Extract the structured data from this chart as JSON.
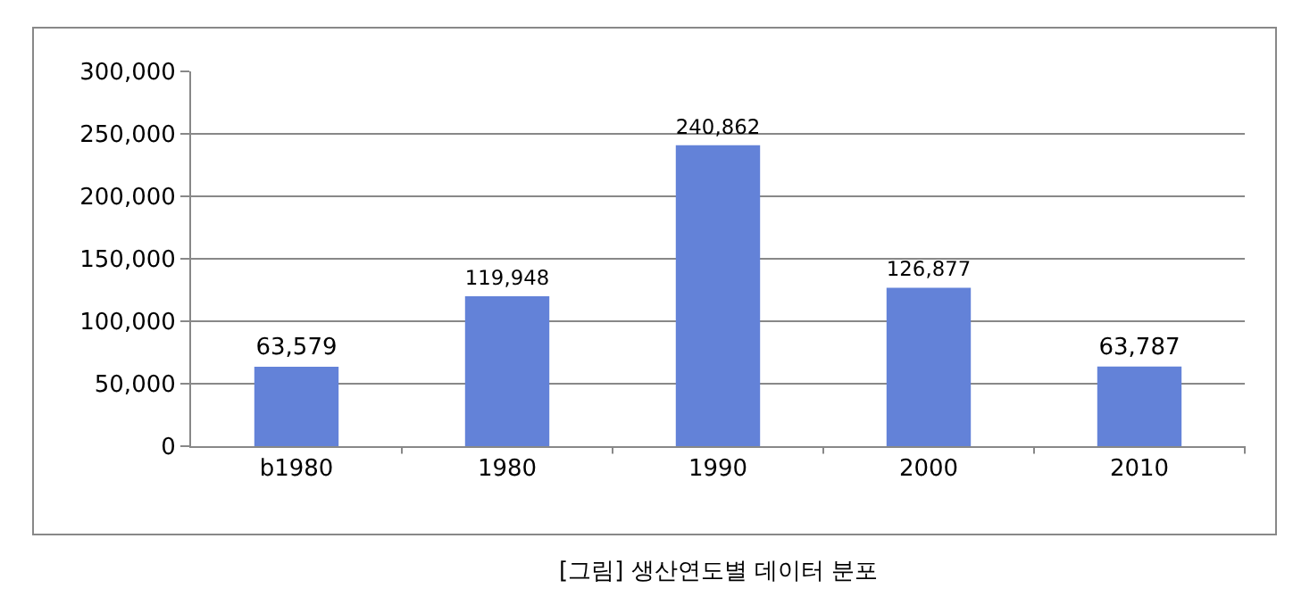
{
  "chart_data": {
    "type": "bar",
    "categories": [
      "b1980",
      "1980",
      "1990",
      "2000",
      "2010"
    ],
    "values": [
      63579,
      119948,
      240862,
      126877,
      63787
    ],
    "color": "#6382d8",
    "ylim": [
      0,
      300000
    ],
    "yticks": [
      {
        "value": 0,
        "label": "0"
      },
      {
        "value": 50000,
        "label": "50,000"
      },
      {
        "value": 100000,
        "label": "100,000"
      },
      {
        "value": 150000,
        "label": "150,000"
      },
      {
        "value": 200000,
        "label": "200,000"
      },
      {
        "value": 250000,
        "label": "250,000"
      },
      {
        "value": 300000,
        "label": "300,000"
      }
    ],
    "grid": "y",
    "value_labels": [
      "63,579",
      "119,948",
      "240,862",
      "126,877",
      "63,787"
    ],
    "annotations": [
      "[그림] 생산연도별 데이터 분포"
    ]
  }
}
